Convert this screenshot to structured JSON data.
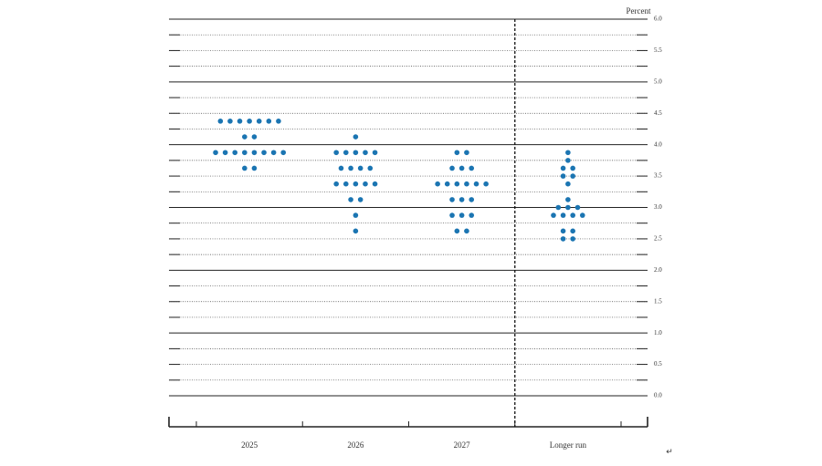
{
  "chart_data": {
    "type": "dotplot",
    "y_unit_label": "Percent",
    "categories": [
      "2025",
      "2026",
      "2027",
      "Longer run"
    ],
    "color": "#1b75b2",
    "values": [
      [
        4.375,
        4.375,
        4.375,
        4.375,
        4.375,
        4.375,
        4.375,
        4.125,
        4.125,
        3.875,
        3.875,
        3.875,
        3.875,
        3.875,
        3.875,
        3.875,
        3.875,
        3.625,
        3.625
      ],
      [
        4.125,
        3.875,
        3.875,
        3.875,
        3.875,
        3.875,
        3.625,
        3.625,
        3.625,
        3.625,
        3.375,
        3.375,
        3.375,
        3.375,
        3.375,
        3.125,
        3.125,
        2.875,
        2.625
      ],
      [
        3.875,
        3.875,
        3.625,
        3.625,
        3.625,
        3.375,
        3.375,
        3.375,
        3.375,
        3.375,
        3.375,
        3.125,
        3.125,
        3.125,
        2.875,
        2.875,
        2.875,
        2.625,
        2.625
      ],
      [
        3.875,
        3.75,
        3.625,
        3.625,
        3.5,
        3.5,
        3.375,
        3.125,
        3.0,
        3.0,
        3.0,
        2.875,
        2.875,
        2.875,
        2.875,
        2.625,
        2.625,
        2.5,
        2.5
      ]
    ],
    "ylim": [
      0,
      6
    ],
    "yticks": [
      {
        "value": 0,
        "label": "0.0"
      },
      0.5,
      {
        "value": 1,
        "label": "1.0"
      },
      1.5,
      {
        "value": 2,
        "label": "2.0"
      },
      2.5,
      {
        "value": 3,
        "label": "3.0"
      },
      3.5,
      {
        "value": 4,
        "label": "4.0"
      },
      4.5,
      {
        "value": 5,
        "label": "5.0"
      },
      5.5,
      {
        "value": 6,
        "label": "6.0"
      }
    ],
    "minor_yticks": [
      0.25,
      0.75,
      1.25,
      1.75,
      2.25,
      2.75,
      3.25,
      3.75,
      4.25,
      4.75,
      5.25,
      5.75
    ],
    "annotation": "↵"
  }
}
